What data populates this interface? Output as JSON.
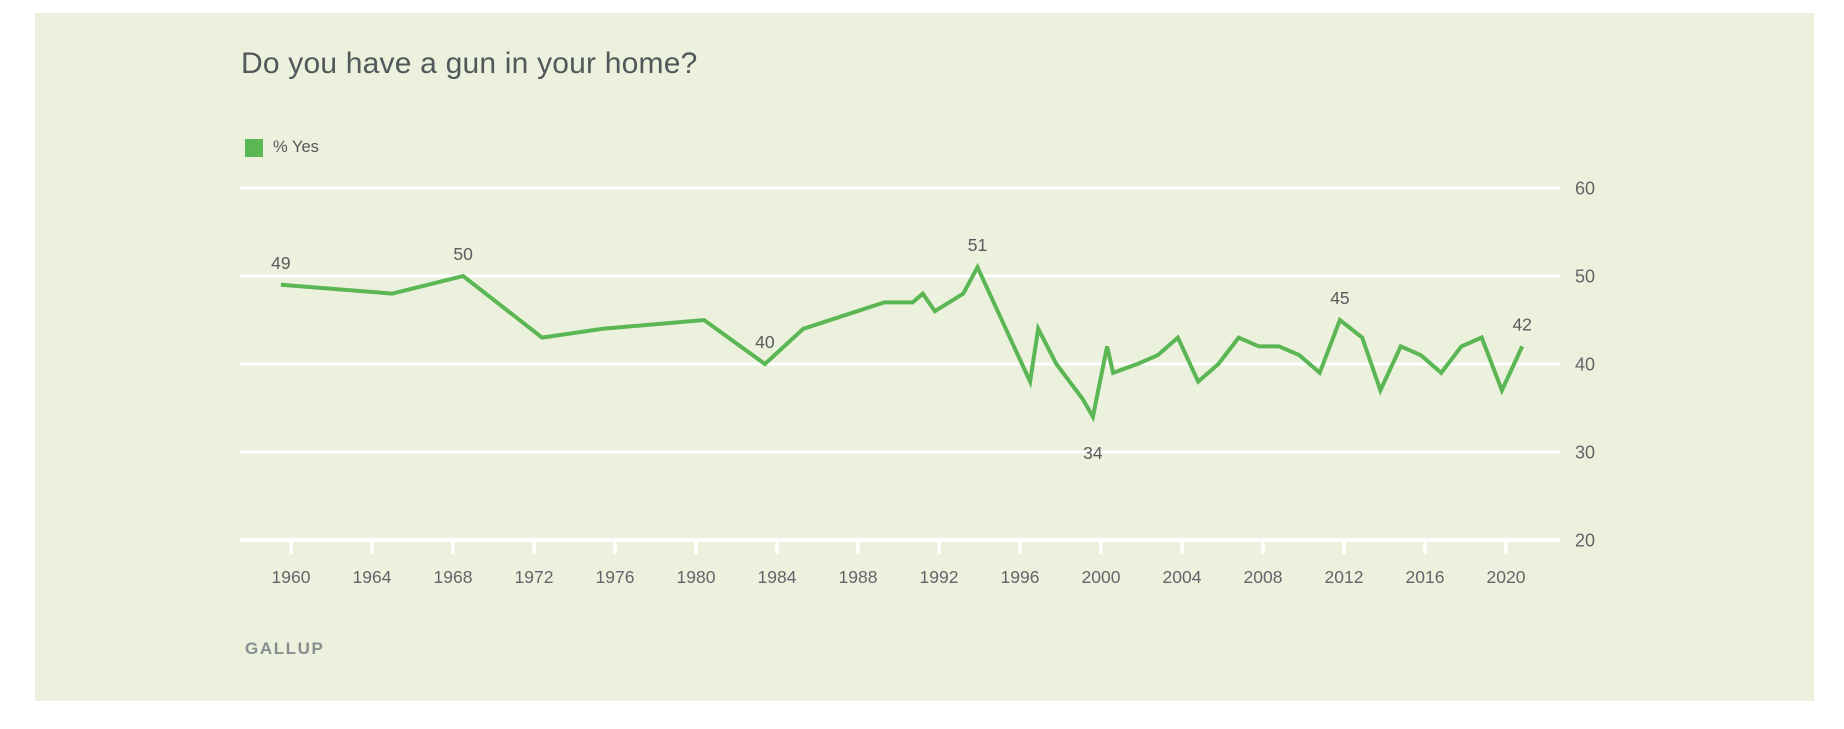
{
  "header": {
    "title": "Do you have a gun in your home?"
  },
  "legend": {
    "items": [
      {
        "label": "% Yes",
        "color": "#5bb654"
      }
    ]
  },
  "footer": {
    "source": "GALLUP"
  },
  "colors": {
    "page_bg": "#ffffff",
    "panel_bg": "#ebf1dc",
    "line": "#5bb654",
    "grid": "#ffffff",
    "title_text": "#53565a",
    "axis_text": "#63656a",
    "data_label_text": "#595b5e",
    "source_text": "#8a8d90"
  },
  "chart_data": {
    "type": "line",
    "title": "Do you have a gun in your home?",
    "ylabel": "",
    "xlabel": "",
    "ylim": [
      20,
      60
    ],
    "xlim": [
      1957.5,
      2022.7
    ],
    "yticks": [
      20,
      30,
      40,
      50,
      60
    ],
    "y_axis_side": "right",
    "grid": "horizontal",
    "legend_position": "top-left",
    "xticks": [
      1960,
      1964,
      1968,
      1972,
      1976,
      1980,
      1984,
      1988,
      1992,
      1996,
      2000,
      2004,
      2008,
      2012,
      2016,
      2020
    ],
    "series": [
      {
        "name": "% Yes",
        "points": [
          [
            1959.5,
            49
          ],
          [
            1965.0,
            48
          ],
          [
            1968.5,
            50
          ],
          [
            1972.4,
            43
          ],
          [
            1975.4,
            44
          ],
          [
            1980.4,
            45
          ],
          [
            1983.4,
            40
          ],
          [
            1985.3,
            44
          ],
          [
            1989.3,
            47
          ],
          [
            1990.7,
            47
          ],
          [
            1991.2,
            48
          ],
          [
            1991.8,
            46
          ],
          [
            1993.2,
            48
          ],
          [
            1993.9,
            51
          ],
          [
            1996.5,
            38
          ],
          [
            1996.9,
            44
          ],
          [
            1997.8,
            40
          ],
          [
            1999.1,
            36
          ],
          [
            1999.6,
            34
          ],
          [
            2000.3,
            42
          ],
          [
            2000.6,
            39
          ],
          [
            2001.8,
            40
          ],
          [
            2002.8,
            41
          ],
          [
            2003.8,
            43
          ],
          [
            2004.8,
            38
          ],
          [
            2005.8,
            40
          ],
          [
            2006.8,
            43
          ],
          [
            2007.8,
            42
          ],
          [
            2008.8,
            42
          ],
          [
            2009.8,
            41
          ],
          [
            2010.8,
            39
          ],
          [
            2011.8,
            45
          ],
          [
            2012.9,
            43
          ],
          [
            2013.8,
            37
          ],
          [
            2014.8,
            42
          ],
          [
            2015.8,
            41
          ],
          [
            2016.8,
            39
          ],
          [
            2017.8,
            42
          ],
          [
            2018.8,
            43
          ],
          [
            2019.8,
            37
          ],
          [
            2020.8,
            42
          ]
        ]
      }
    ],
    "annotations": [
      {
        "year": 1959.5,
        "value": 49,
        "text": "49",
        "placement": "above"
      },
      {
        "year": 1968.5,
        "value": 50,
        "text": "50",
        "placement": "above"
      },
      {
        "year": 1983.4,
        "value": 40,
        "text": "40",
        "placement": "above"
      },
      {
        "year": 1993.9,
        "value": 51,
        "text": "51",
        "placement": "above"
      },
      {
        "year": 1999.6,
        "value": 34,
        "text": "34",
        "placement": "below"
      },
      {
        "year": 2011.8,
        "value": 45,
        "text": "45",
        "placement": "above"
      },
      {
        "year": 2020.8,
        "value": 42,
        "text": "42",
        "placement": "above"
      }
    ]
  }
}
